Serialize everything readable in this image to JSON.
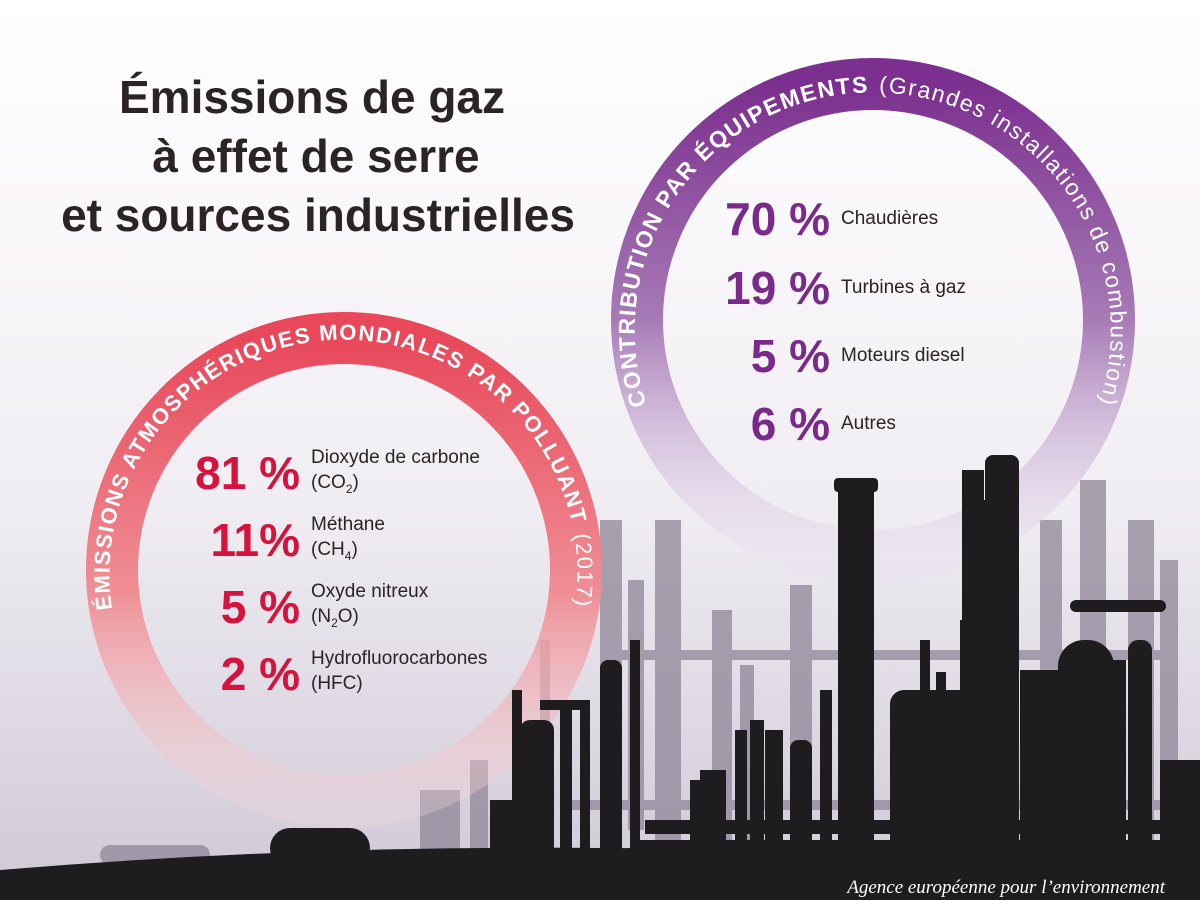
{
  "title": {
    "lines": [
      "Émissions de gaz",
      "à effet de serre",
      "et sources industrielles"
    ]
  },
  "colors": {
    "red_accent": "#d6123f",
    "purple_accent": "#7a2a8a",
    "ring_red": "#e64a5a",
    "ring_purple": "#8a4a9c",
    "silhouette": "#1f1c1f"
  },
  "pollutants": {
    "ring_title": "ÉMISSIONS ATMOSPHÉRIQUES MONDIALES PAR POLLUANT",
    "ring_year": "(2017)",
    "items": [
      {
        "pct": "81 %",
        "name": "Dioxyde de carbone",
        "formula_pre": "(CO",
        "formula_sub": "2",
        "formula_post": ")"
      },
      {
        "pct": "11%",
        "name": "Méthane",
        "formula_pre": "(CH",
        "formula_sub": "4",
        "formula_post": ")"
      },
      {
        "pct": "5 %",
        "name": "Oxyde nitreux",
        "formula_pre": "(N",
        "formula_sub": "2",
        "formula_post": "O)"
      },
      {
        "pct": "2 %",
        "name": "Hydrofluorocarbones",
        "formula_pre": "(HFC)",
        "formula_sub": "",
        "formula_post": ""
      }
    ]
  },
  "equipment": {
    "ring_title": "CONTRIBUTION PAR ÉQUIPEMENTS",
    "ring_subtitle": "(Grandes installations de combustion)",
    "items": [
      {
        "pct": "70 %",
        "name": "Chaudières"
      },
      {
        "pct": "19 %",
        "name": "Turbines à gaz"
      },
      {
        "pct": "5 %",
        "name": "Moteurs diesel"
      },
      {
        "pct": "6 %",
        "name": "Autres"
      }
    ]
  },
  "credit": "Agence européenne pour l’environnement"
}
